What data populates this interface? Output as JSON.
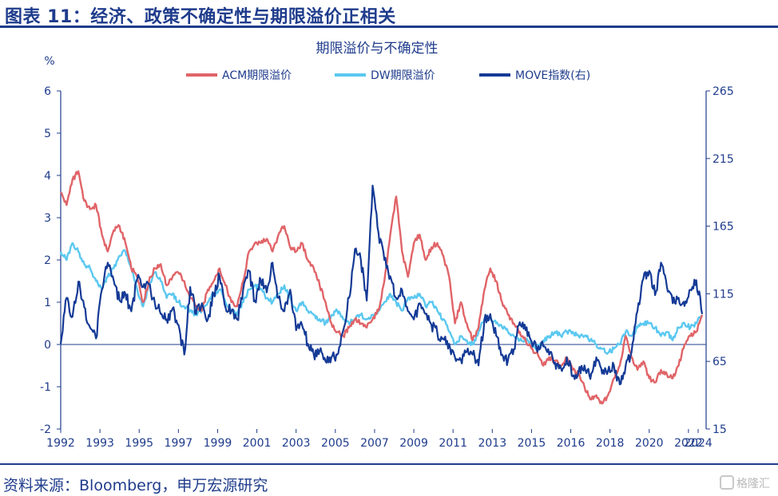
{
  "figure_title": "图表 11：经济、政策不确定性与期限溢价正相关",
  "source": "资料来源：Bloomberg，申万宏源研究",
  "watermark": "格隆汇",
  "chart_data": {
    "type": "line",
    "title": "期限溢价与不确定性",
    "ylabel_left": "%",
    "ylim_left": [
      -2,
      6
    ],
    "yticks_left": [
      "6",
      "5",
      "4",
      "3",
      "2",
      "1",
      "0",
      "-1",
      "-2"
    ],
    "ylim_right": [
      15,
      265
    ],
    "yticks_right": [
      "265",
      "215",
      "165",
      "115",
      "65",
      "15"
    ],
    "xlim": [
      1992,
      2024.9
    ],
    "xtick_labels": [
      "1992",
      "1993",
      "1995",
      "1997",
      "1999",
      "2001",
      "2003",
      "2005",
      "2007",
      "2009",
      "2011",
      "2013",
      "2015",
      "2016",
      "2018",
      "2020",
      "2022",
      "2024"
    ],
    "xtick_positions": [
      1992,
      1994,
      1996,
      1998,
      2000,
      2002,
      2004,
      2006,
      2008,
      2010,
      2012,
      2014,
      2016,
      2018,
      2020,
      2022,
      2024,
      2025.6
    ],
    "legend_position": "top",
    "colors": {
      "acm": "#e06468",
      "dw": "#5bc8f0",
      "move": "#143a96",
      "axis": "#1f3c8c"
    },
    "series": [
      {
        "name": "ACM期限溢价",
        "axis": "left",
        "x": [
          1992.0,
          1992.3,
          1992.6,
          1992.9,
          1993.2,
          1993.5,
          1993.8,
          1994.1,
          1994.4,
          1994.7,
          1995.0,
          1995.3,
          1995.6,
          1995.9,
          1996.2,
          1996.5,
          1996.8,
          1997.1,
          1997.4,
          1997.7,
          1998.0,
          1998.3,
          1998.6,
          1998.9,
          1999.2,
          1999.5,
          1999.8,
          2000.1,
          2000.4,
          2000.7,
          2001.0,
          2001.3,
          2001.6,
          2001.9,
          2002.2,
          2002.5,
          2002.8,
          2003.1,
          2003.4,
          2003.7,
          2004.0,
          2004.3,
          2004.6,
          2004.9,
          2005.2,
          2005.5,
          2005.8,
          2006.1,
          2006.4,
          2006.7,
          2007.0,
          2007.3,
          2007.6,
          2007.9,
          2008.2,
          2008.5,
          2008.8,
          2009.1,
          2009.4,
          2009.7,
          2010.0,
          2010.3,
          2010.6,
          2010.9,
          2011.2,
          2011.5,
          2011.8,
          2012.1,
          2012.4,
          2012.7,
          2013.0,
          2013.3,
          2013.6,
          2013.9,
          2014.2,
          2014.5,
          2014.8,
          2015.1,
          2015.4,
          2015.7,
          2016.0,
          2016.3,
          2016.6,
          2016.9,
          2017.2,
          2017.5,
          2017.8,
          2018.1,
          2018.4,
          2018.7,
          2019.0,
          2019.3,
          2019.6,
          2019.9,
          2020.2,
          2020.5,
          2020.8,
          2021.1,
          2021.4,
          2021.7,
          2022.0,
          2022.3,
          2022.6,
          2022.9,
          2023.2,
          2023.5,
          2023.8,
          2024.1,
          2024.4,
          2024.7
        ],
        "y": [
          3.6,
          3.3,
          3.9,
          4.1,
          3.4,
          3.2,
          3.3,
          2.6,
          2.2,
          2.7,
          2.8,
          2.4,
          1.8,
          1.6,
          1.0,
          1.5,
          1.8,
          1.9,
          1.4,
          1.6,
          1.7,
          1.5,
          1.1,
          0.9,
          0.8,
          1.3,
          1.5,
          1.8,
          1.4,
          1.0,
          0.9,
          1.5,
          2.2,
          2.4,
          2.4,
          2.5,
          2.2,
          2.6,
          2.8,
          2.3,
          2.2,
          2.4,
          2.0,
          1.8,
          1.4,
          1.0,
          0.5,
          0.3,
          0.2,
          0.4,
          0.6,
          0.5,
          0.4,
          0.6,
          0.8,
          1.5,
          2.6,
          3.5,
          2.2,
          1.6,
          2.4,
          2.6,
          2.0,
          2.3,
          2.4,
          2.1,
          1.6,
          0.5,
          1.0,
          0.5,
          0.1,
          0.4,
          1.3,
          1.8,
          1.5,
          1.0,
          0.7,
          0.5,
          0.3,
          0.1,
          -0.1,
          -0.2,
          -0.5,
          -0.3,
          -0.4,
          -0.5,
          -0.3,
          -0.6,
          -0.7,
          -1.0,
          -1.3,
          -1.2,
          -1.4,
          -1.2,
          -0.8,
          -0.5,
          0.2,
          -0.3,
          -0.6,
          -0.4,
          -0.8,
          -0.9,
          -0.6,
          -0.7,
          -0.8,
          -0.5,
          0.0,
          0.2,
          0.3,
          0.7
        ]
      },
      {
        "name": "DW期限溢价",
        "axis": "left",
        "x": [
          1992.0,
          1992.3,
          1992.6,
          1992.9,
          1993.2,
          1993.5,
          1993.8,
          1994.1,
          1994.4,
          1994.7,
          1995.0,
          1995.3,
          1995.6,
          1995.9,
          1996.2,
          1996.5,
          1996.8,
          1997.1,
          1997.4,
          1997.7,
          1998.0,
          1998.3,
          1998.6,
          1998.9,
          1999.2,
          1999.5,
          1999.8,
          2000.1,
          2000.4,
          2000.7,
          2001.0,
          2001.3,
          2001.6,
          2001.9,
          2002.2,
          2002.5,
          2002.8,
          2003.1,
          2003.4,
          2003.7,
          2004.0,
          2004.3,
          2004.6,
          2004.9,
          2005.2,
          2005.5,
          2005.8,
          2006.1,
          2006.4,
          2006.7,
          2007.0,
          2007.3,
          2007.6,
          2007.9,
          2008.2,
          2008.5,
          2008.8,
          2009.1,
          2009.4,
          2009.7,
          2010.0,
          2010.3,
          2010.6,
          2010.9,
          2011.2,
          2011.5,
          2011.8,
          2012.1,
          2012.4,
          2012.7,
          2013.0,
          2013.3,
          2013.6,
          2013.9,
          2014.2,
          2014.5,
          2014.8,
          2015.1,
          2015.4,
          2015.7,
          2016.0,
          2016.3,
          2016.6,
          2016.9,
          2017.2,
          2017.5,
          2017.8,
          2018.1,
          2018.4,
          2018.7,
          2019.0,
          2019.3,
          2019.6,
          2019.9,
          2020.2,
          2020.5,
          2020.8,
          2021.1,
          2021.4,
          2021.7,
          2022.0,
          2022.3,
          2022.6,
          2022.9,
          2023.2,
          2023.5,
          2023.8,
          2024.1,
          2024.4,
          2024.7
        ],
        "y": [
          2.2,
          2.0,
          2.4,
          2.2,
          1.9,
          1.8,
          1.5,
          1.3,
          1.6,
          1.8,
          2.1,
          2.2,
          1.8,
          1.3,
          0.9,
          1.4,
          1.7,
          1.5,
          1.1,
          1.2,
          1.0,
          0.9,
          0.8,
          0.7,
          0.8,
          1.0,
          1.2,
          1.3,
          1.0,
          0.8,
          0.7,
          1.0,
          1.3,
          1.4,
          1.3,
          1.1,
          1.0,
          1.2,
          1.4,
          1.1,
          0.8,
          1.0,
          0.8,
          0.7,
          0.6,
          0.5,
          0.7,
          0.8,
          0.6,
          0.5,
          0.6,
          0.7,
          0.6,
          0.7,
          0.8,
          1.0,
          1.2,
          1.0,
          0.8,
          1.1,
          1.1,
          1.2,
          0.9,
          1.0,
          0.8,
          0.6,
          0.3,
          0.0,
          0.2,
          0.1,
          0.0,
          0.3,
          0.6,
          0.6,
          0.5,
          0.4,
          0.3,
          0.2,
          0.1,
          0.1,
          0.0,
          -0.1,
          0.1,
          0.2,
          0.3,
          0.2,
          0.3,
          0.3,
          0.2,
          0.2,
          0.1,
          0.0,
          -0.1,
          -0.2,
          -0.1,
          0.0,
          0.3,
          0.2,
          0.4,
          0.5,
          0.5,
          0.4,
          0.2,
          0.3,
          0.1,
          0.4,
          0.5,
          0.4,
          0.5,
          0.7
        ]
      },
      {
        "name": "MOVE指数(右)",
        "axis": "right",
        "x": [
          1992.0,
          1992.3,
          1992.6,
          1992.9,
          1993.2,
          1993.5,
          1993.8,
          1994.1,
          1994.4,
          1994.7,
          1995.0,
          1995.3,
          1995.6,
          1995.9,
          1996.2,
          1996.5,
          1996.8,
          1997.1,
          1997.4,
          1997.7,
          1998.0,
          1998.3,
          1998.6,
          1998.9,
          1999.2,
          1999.5,
          1999.8,
          2000.1,
          2000.4,
          2000.7,
          2001.0,
          2001.3,
          2001.6,
          2001.9,
          2002.2,
          2002.5,
          2002.8,
          2003.1,
          2003.4,
          2003.7,
          2004.0,
          2004.3,
          2004.6,
          2004.9,
          2005.2,
          2005.5,
          2005.8,
          2006.1,
          2006.4,
          2006.7,
          2007.0,
          2007.3,
          2007.6,
          2007.9,
          2008.2,
          2008.5,
          2008.8,
          2009.1,
          2009.4,
          2009.7,
          2010.0,
          2010.3,
          2010.6,
          2010.9,
          2011.2,
          2011.5,
          2011.8,
          2012.1,
          2012.4,
          2012.7,
          2013.0,
          2013.3,
          2013.6,
          2013.9,
          2014.2,
          2014.5,
          2014.8,
          2015.1,
          2015.4,
          2015.7,
          2016.0,
          2016.3,
          2016.6,
          2016.9,
          2017.2,
          2017.5,
          2017.8,
          2018.1,
          2018.4,
          2018.7,
          2019.0,
          2019.3,
          2019.6,
          2019.9,
          2020.2,
          2020.5,
          2020.8,
          2021.1,
          2021.4,
          2021.7,
          2022.0,
          2022.3,
          2022.6,
          2022.9,
          2023.2,
          2023.5,
          2023.8,
          2024.1,
          2024.4,
          2024.7
        ],
        "y": [
          78,
          112,
          98,
          124,
          105,
          90,
          82,
          118,
          138,
          125,
          110,
          115,
          102,
          126,
          120,
          122,
          108,
          100,
          96,
          104,
          92,
          70,
          120,
          100,
          108,
          96,
          115,
          128,
          105,
          102,
          96,
          118,
          132,
          110,
          125,
          116,
          138,
          112,
          102,
          118,
          88,
          92,
          78,
          70,
          73,
          65,
          68,
          70,
          88,
          112,
          148,
          140,
          110,
          195,
          160,
          140,
          128,
          112,
          118,
          102,
          96,
          108,
          100,
          92,
          86,
          82,
          78,
          68,
          66,
          72,
          70,
          62,
          96,
          100,
          84,
          70,
          66,
          74,
          94,
          88,
          80,
          72,
          76,
          70,
          64,
          60,
          68,
          54,
          58,
          62,
          52,
          68,
          56,
          58,
          62,
          48,
          62,
          72,
          102,
          126,
          132,
          114,
          138,
          120,
          108,
          112,
          106,
          118,
          125,
          100
        ]
      }
    ]
  }
}
